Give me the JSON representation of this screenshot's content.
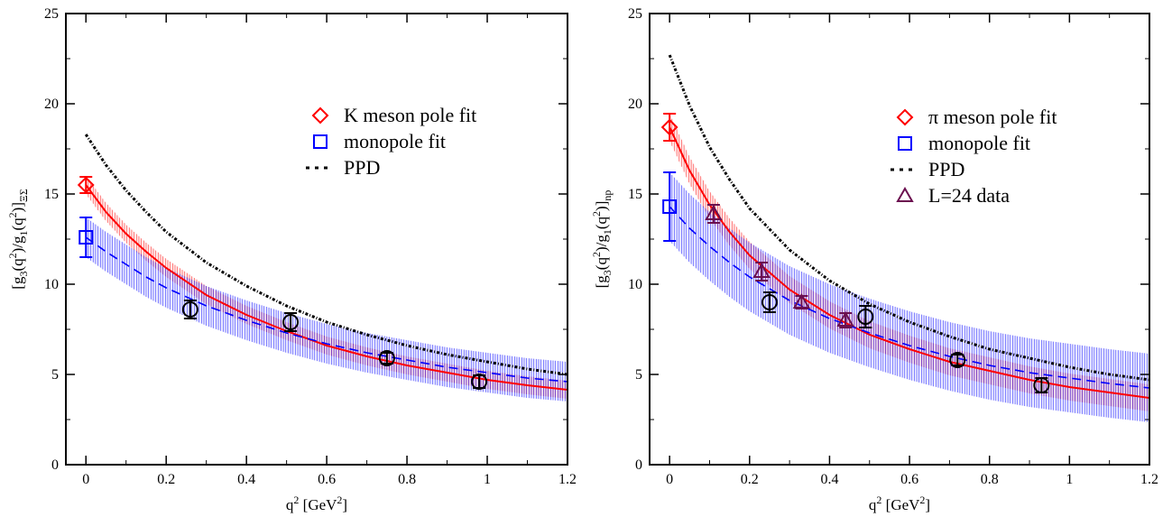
{
  "chart_data": [
    {
      "type": "scatter",
      "title": "",
      "xlabel": "q^2 [GeV^2]",
      "ylabel": "[g_3(q^2)/g_1(q^2)]_ΞΣ",
      "ylabel_subscript": "ΞΣ",
      "xlim": [
        -0.05,
        1.2
      ],
      "ylim": [
        0,
        25
      ],
      "xticks": [
        0,
        0.2,
        0.4,
        0.6,
        0.8,
        1,
        1.2
      ],
      "yticks": [
        0,
        5,
        10,
        15,
        20,
        25
      ],
      "grid": false,
      "legend_position": "upper-right",
      "legend": [
        {
          "label": "K meson pole fit",
          "marker": "diamond",
          "color": "#ff0000"
        },
        {
          "label": "monopole fit",
          "marker": "square",
          "color": "#0000ff"
        },
        {
          "label": "PPD",
          "marker": "dash-dot",
          "color": "#000000"
        }
      ],
      "data_points": {
        "marker": "circle",
        "color": "#000000",
        "x": [
          0.26,
          0.51,
          0.75,
          0.98
        ],
        "y": [
          8.6,
          7.9,
          5.9,
          4.6
        ],
        "err": [
          0.5,
          0.5,
          0.3,
          0.35
        ]
      },
      "extrapolated": [
        {
          "series": "K meson pole fit",
          "x": 0,
          "y": 15.5,
          "err": 0.45
        },
        {
          "series": "monopole fit",
          "x": 0,
          "y": 12.6,
          "err": 1.1
        }
      ],
      "curves": [
        {
          "series": "K meson pole fit",
          "style": "solid",
          "band": true,
          "band_width": 0.5,
          "x": [
            0,
            0.05,
            0.1,
            0.15,
            0.2,
            0.3,
            0.4,
            0.5,
            0.6,
            0.7,
            0.8,
            0.9,
            1.0,
            1.1,
            1.2
          ],
          "y": [
            15.5,
            14.0,
            12.8,
            11.8,
            10.9,
            9.4,
            8.3,
            7.4,
            6.6,
            6.0,
            5.5,
            5.1,
            4.7,
            4.4,
            4.15
          ]
        },
        {
          "series": "monopole fit",
          "style": "dashed",
          "band": true,
          "band_width": 1.1,
          "x": [
            0,
            0.05,
            0.1,
            0.15,
            0.2,
            0.3,
            0.4,
            0.5,
            0.6,
            0.7,
            0.8,
            0.9,
            1.0,
            1.1,
            1.2
          ],
          "y": [
            12.6,
            11.8,
            11.1,
            10.4,
            9.8,
            8.8,
            8.0,
            7.3,
            6.7,
            6.2,
            5.8,
            5.4,
            5.1,
            4.8,
            4.6
          ]
        },
        {
          "series": "PPD",
          "style": "dash-dot",
          "x": [
            0,
            0.05,
            0.1,
            0.15,
            0.2,
            0.3,
            0.4,
            0.5,
            0.6,
            0.7,
            0.8,
            0.9,
            1.0,
            1.1,
            1.2
          ],
          "y": [
            18.3,
            16.6,
            15.2,
            14.0,
            12.9,
            11.2,
            9.9,
            8.8,
            7.9,
            7.2,
            6.6,
            6.1,
            5.7,
            5.3,
            5.0
          ]
        }
      ]
    },
    {
      "type": "scatter",
      "title": "",
      "xlabel": "q^2 [GeV^2]",
      "ylabel": "[g_3(q^2)/g_1(q^2)]_np",
      "ylabel_subscript": "np",
      "xlim": [
        -0.05,
        1.2
      ],
      "ylim": [
        0,
        25
      ],
      "xticks": [
        0,
        0.2,
        0.4,
        0.6,
        0.8,
        1,
        1.2
      ],
      "yticks": [
        0,
        5,
        10,
        15,
        20,
        25
      ],
      "grid": false,
      "legend_position": "upper-right",
      "legend": [
        {
          "label": "π meson pole fit",
          "marker": "diamond",
          "color": "#ff0000"
        },
        {
          "label": "monopole fit",
          "marker": "square",
          "color": "#0000ff"
        },
        {
          "label": "PPD",
          "marker": "dash-dot",
          "color": "#000000"
        },
        {
          "label": "L=24 data",
          "marker": "triangle",
          "color": "#6b0f4f"
        }
      ],
      "data_points": {
        "marker": "circle",
        "color": "#000000",
        "x": [
          0.25,
          0.49,
          0.72,
          0.93
        ],
        "y": [
          9.0,
          8.2,
          5.8,
          4.4
        ],
        "err": [
          0.55,
          0.6,
          0.3,
          0.4
        ]
      },
      "l24_points": {
        "marker": "triangle",
        "color": "#6b0f4f",
        "x": [
          0.11,
          0.23,
          0.33,
          0.44
        ],
        "y": [
          13.9,
          10.7,
          9.0,
          8.0
        ],
        "err": [
          0.5,
          0.5,
          0.35,
          0.4
        ]
      },
      "extrapolated": [
        {
          "series": "π meson pole fit",
          "x": 0,
          "y": 18.7,
          "err": 0.75
        },
        {
          "series": "monopole fit",
          "x": 0,
          "y": 14.3,
          "err": 1.9
        }
      ],
      "curves": [
        {
          "series": "π meson pole fit",
          "style": "solid",
          "band": true,
          "band_width": 0.75,
          "x": [
            0,
            0.05,
            0.1,
            0.15,
            0.2,
            0.3,
            0.4,
            0.5,
            0.6,
            0.7,
            0.8,
            0.9,
            1.0,
            1.1,
            1.2
          ],
          "y": [
            18.7,
            16.3,
            14.4,
            12.9,
            11.6,
            9.7,
            8.3,
            7.2,
            6.4,
            5.7,
            5.2,
            4.7,
            4.3,
            4.0,
            3.7
          ]
        },
        {
          "series": "monopole fit",
          "style": "dashed",
          "band": true,
          "band_width": 1.9,
          "x": [
            0,
            0.05,
            0.1,
            0.15,
            0.2,
            0.3,
            0.4,
            0.5,
            0.6,
            0.7,
            0.8,
            0.9,
            1.0,
            1.1,
            1.2
          ],
          "y": [
            14.3,
            13.1,
            12.1,
            11.2,
            10.4,
            9.1,
            8.1,
            7.3,
            6.6,
            6.0,
            5.5,
            5.1,
            4.8,
            4.5,
            4.25
          ]
        },
        {
          "series": "PPD",
          "style": "dash-dot",
          "x": [
            0,
            0.05,
            0.1,
            0.15,
            0.2,
            0.3,
            0.4,
            0.5,
            0.6,
            0.7,
            0.8,
            0.9,
            1.0,
            1.1,
            1.2
          ],
          "y": [
            22.7,
            19.9,
            17.6,
            15.8,
            14.2,
            11.9,
            10.2,
            8.9,
            7.9,
            7.1,
            6.4,
            5.9,
            5.4,
            5.0,
            4.7
          ]
        }
      ]
    }
  ]
}
